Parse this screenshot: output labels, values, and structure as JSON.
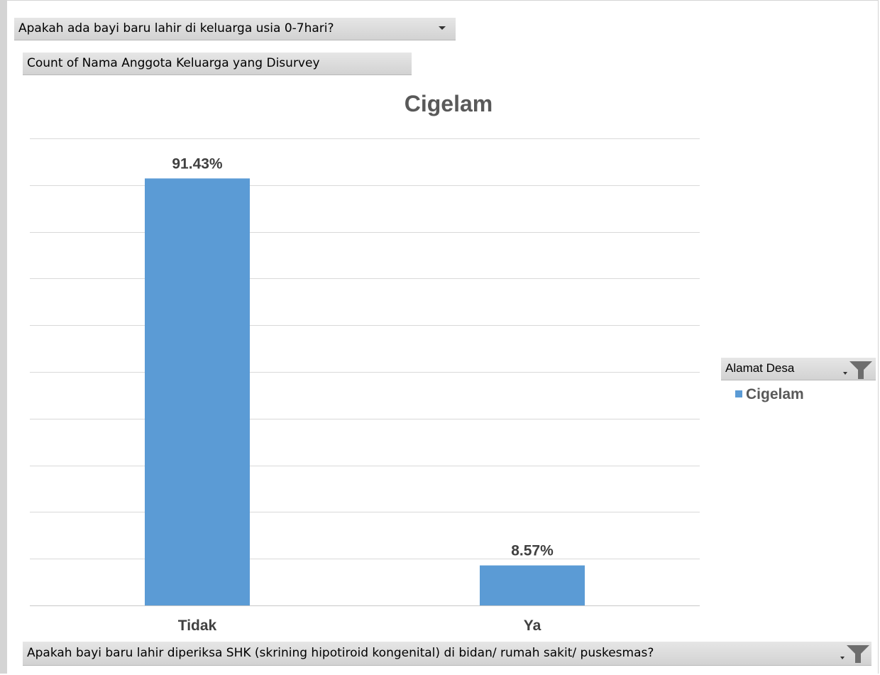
{
  "pivot": {
    "report_filter_label": "Apakah ada bayi baru lahir di keluarga usia 0-7hari?",
    "value_field_label": "Count of Nama Anggota Keluarga yang Disurvey",
    "axis_field_label": "Apakah bayi baru lahir diperiksa SHK (skrining hipotiroid kongenital) di bidan/ rumah sakit/ puskesmas?",
    "legend_field_label": "Alamat Desa"
  },
  "icons": {
    "dropdown": "chevron-down-icon",
    "filter": "filter-funnel-icon"
  },
  "chart_data": {
    "type": "bar",
    "title": "Cigelam",
    "categories": [
      "Tidak",
      "Ya"
    ],
    "series": [
      {
        "name": "Cigelam",
        "values": [
          91.43,
          8.57
        ],
        "labels": [
          "91.43%",
          "8.57%"
        ]
      }
    ],
    "ylim": [
      0,
      100
    ],
    "grid": true,
    "legend": "right",
    "bar_color": "#5b9bd5"
  }
}
